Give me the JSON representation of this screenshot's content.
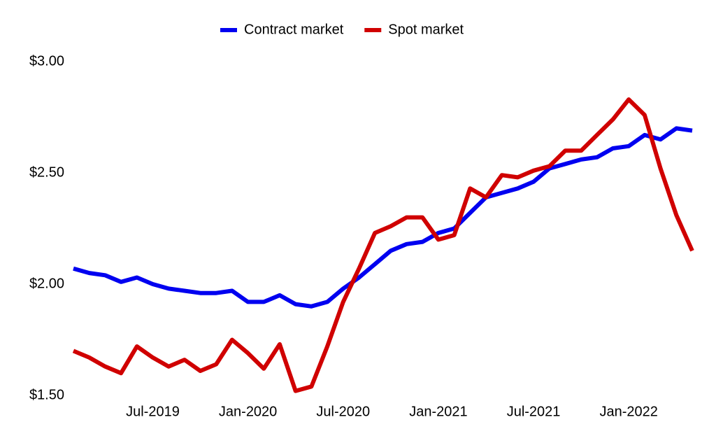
{
  "chart_data": {
    "type": "line",
    "categories": [
      null,
      null,
      null,
      null,
      null,
      "Jul-2019",
      null,
      null,
      null,
      null,
      null,
      "Jan-2020",
      null,
      null,
      null,
      null,
      null,
      "Jul-2020",
      null,
      null,
      null,
      null,
      null,
      "Jan-2021",
      null,
      null,
      null,
      null,
      null,
      "Jul-2021",
      null,
      null,
      null,
      null,
      null,
      "Jan-2022",
      null,
      null,
      null,
      null
    ],
    "series": [
      {
        "name": "Contract market",
        "color": "#0000f0",
        "values": [
          2.07,
          2.05,
          2.04,
          2.01,
          2.03,
          2.0,
          1.98,
          1.97,
          1.96,
          1.96,
          1.97,
          1.92,
          1.92,
          1.95,
          1.91,
          1.9,
          1.92,
          1.98,
          2.03,
          2.09,
          2.15,
          2.18,
          2.19,
          2.23,
          2.25,
          2.32,
          2.39,
          2.41,
          2.43,
          2.46,
          2.52,
          2.54,
          2.56,
          2.57,
          2.61,
          2.62,
          2.67,
          2.65,
          2.7,
          2.69
        ]
      },
      {
        "name": "Spot market",
        "color": "#d00000",
        "values": [
          1.7,
          1.67,
          1.63,
          1.6,
          1.72,
          1.67,
          1.63,
          1.66,
          1.61,
          1.64,
          1.75,
          1.69,
          1.62,
          1.73,
          1.52,
          1.54,
          1.72,
          1.92,
          2.07,
          2.23,
          2.26,
          2.3,
          2.3,
          2.2,
          2.22,
          2.43,
          2.39,
          2.49,
          2.48,
          2.51,
          2.53,
          2.6,
          2.6,
          2.67,
          2.74,
          2.83,
          2.76,
          2.52,
          2.31,
          2.15
        ]
      }
    ],
    "ylim": [
      1.5,
      3.0
    ],
    "yticks": [
      {
        "value": 1.5,
        "label": "$1.50"
      },
      {
        "value": 2.0,
        "label": "$2.00"
      },
      {
        "value": 2.5,
        "label": "$2.50"
      },
      {
        "value": 3.0,
        "label": "$3.00"
      }
    ],
    "grid": false,
    "legend": "top"
  }
}
